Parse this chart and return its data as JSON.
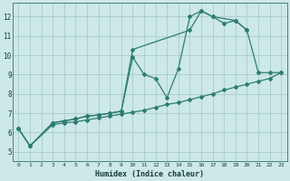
{
  "xlabel": "Humidex (Indice chaleur)",
  "background_color": "#cce8e8",
  "grid_color": "#aacccc",
  "line_color": "#2e7d70",
  "xlim": [
    -0.5,
    23.5
  ],
  "ylim": [
    4.5,
    12.7
  ],
  "xticks": [
    0,
    1,
    2,
    3,
    4,
    5,
    6,
    7,
    8,
    9,
    10,
    11,
    12,
    13,
    14,
    15,
    16,
    17,
    18,
    19,
    20,
    21,
    22,
    23
  ],
  "yticks": [
    5,
    6,
    7,
    8,
    9,
    10,
    11,
    12
  ],
  "line1_x": [
    0,
    1,
    3,
    4,
    5,
    6,
    7,
    8,
    9,
    10,
    15,
    16,
    17,
    19,
    20
  ],
  "line1_y": [
    6.2,
    5.3,
    6.5,
    6.6,
    6.7,
    6.85,
    6.9,
    7.0,
    7.1,
    10.3,
    11.3,
    12.3,
    12.0,
    11.8,
    11.3
  ],
  "line2_x": [
    0,
    1,
    3,
    4,
    5,
    6,
    7,
    8,
    9,
    10,
    11,
    12,
    13,
    14,
    15,
    16,
    17,
    18,
    19,
    20,
    21,
    22,
    23
  ],
  "line2_y": [
    6.2,
    5.3,
    6.5,
    6.6,
    6.7,
    6.85,
    6.9,
    7.0,
    7.1,
    9.9,
    9.0,
    8.8,
    7.8,
    9.3,
    12.0,
    12.3,
    12.0,
    11.65,
    11.8,
    11.3,
    9.1,
    9.1,
    9.1
  ],
  "line3_x": [
    0,
    1,
    3,
    4,
    5,
    6,
    7,
    8,
    9,
    10,
    11,
    12,
    13,
    14,
    15,
    16,
    17,
    18,
    19,
    20,
    21,
    22,
    23
  ],
  "line3_y": [
    6.2,
    5.3,
    6.4,
    6.5,
    6.55,
    6.65,
    6.75,
    6.85,
    6.95,
    7.05,
    7.15,
    7.3,
    7.45,
    7.55,
    7.7,
    7.85,
    8.0,
    8.2,
    8.35,
    8.5,
    8.65,
    8.8,
    9.1
  ]
}
